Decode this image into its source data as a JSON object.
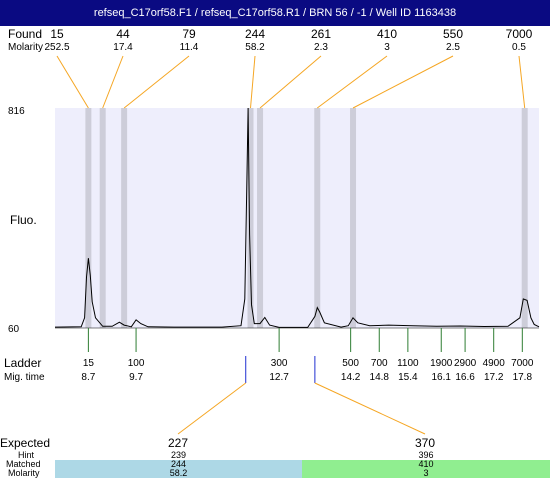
{
  "header": {
    "title": "refseq_C17orf58.F1 / refseq_C17orf58.R1 / BRN 56 / -1 / Well ID 1163438"
  },
  "labels": {
    "found": "Found",
    "molarity": "Molarity",
    "fluo": "Fluo.",
    "ladder": "Ladder",
    "mig_time": "Mig. time",
    "expected": "Expected",
    "hint": "Hint",
    "matched": "Matched",
    "molarity_bottom": "Molarity"
  },
  "colors": {
    "title_bg": "#0a0a82",
    "plot_bg": "#eeeefc",
    "band": "#cdcdd9",
    "orange_line": "#f5a623",
    "green_tick": "#2e7d32",
    "blue_marker": "#1f2fd1",
    "match_blue": "#add8e6",
    "match_green": "#90ee90"
  },
  "chart_data": {
    "type": "line",
    "title": "",
    "ylabel": "Fluo.",
    "ylim": [
      60,
      816
    ],
    "y_ticks": [
      "816",
      "60"
    ],
    "trace_mig_time": [
      8.0,
      8.55,
      8.62,
      8.66,
      8.7,
      8.74,
      8.78,
      8.85,
      9.0,
      9.2,
      9.35,
      9.45,
      9.6,
      9.7,
      9.8,
      9.95,
      10.5,
      11.5,
      11.9,
      11.98,
      12.02,
      12.05,
      12.08,
      12.12,
      12.18,
      12.3,
      12.4,
      12.5,
      12.7,
      13.3,
      13.45,
      13.5,
      13.55,
      13.65,
      14.0,
      14.15,
      14.25,
      14.35,
      14.6,
      15.0,
      15.5,
      16.0,
      16.5,
      17.0,
      17.5,
      17.75,
      17.82,
      17.9,
      17.98,
      18.05,
      18.15
    ],
    "trace_fluo": [
      63,
      64,
      95,
      235,
      300,
      240,
      150,
      95,
      66,
      66,
      80,
      70,
      64,
      88,
      75,
      64,
      63,
      63,
      68,
      160,
      530,
      816,
      380,
      140,
      75,
      75,
      96,
      70,
      62,
      62,
      100,
      130,
      115,
      78,
      63,
      68,
      95,
      78,
      68,
      70,
      68,
      66,
      67,
      65,
      66,
      95,
      160,
      155,
      95,
      72,
      64
    ],
    "found_peaks": [
      {
        "size": "15",
        "molarity": "252.5",
        "mig_time": 8.7
      },
      {
        "size": "44",
        "molarity": "17.4",
        "mig_time": 9.0
      },
      {
        "size": "79",
        "molarity": "11.4",
        "mig_time": 9.45
      },
      {
        "size": "244",
        "molarity": "58.2",
        "mig_time": 12.1
      },
      {
        "size": "261",
        "molarity": "2.3",
        "mig_time": 12.3
      },
      {
        "size": "410",
        "molarity": "3",
        "mig_time": 13.5
      },
      {
        "size": "550",
        "molarity": "2.5",
        "mig_time": 14.25
      },
      {
        "size": "7000",
        "molarity": "0.5",
        "mig_time": 17.85
      }
    ],
    "ladder": [
      {
        "size": "15",
        "mig_time": "8.7"
      },
      {
        "size": "100",
        "mig_time": "9.7"
      },
      {
        "size": "300",
        "mig_time": "12.7"
      },
      {
        "size": "500",
        "mig_time": "14.2"
      },
      {
        "size": "700",
        "mig_time": "14.8"
      },
      {
        "size": "1100",
        "mig_time": "15.4"
      },
      {
        "size": "1900",
        "mig_time": "16.1"
      },
      {
        "size": "2900",
        "mig_time": "16.6"
      },
      {
        "size": "4900",
        "mig_time": "17.2"
      },
      {
        "size": "7000",
        "mig_time": "17.8"
      }
    ],
    "expected": [
      {
        "size": "227",
        "hint": "239",
        "matched": "244",
        "molarity": "58.2",
        "mig_time": 12.0
      },
      {
        "size": "370",
        "hint": "396",
        "matched": "410",
        "molarity": "3",
        "mig_time": 13.45
      }
    ]
  }
}
